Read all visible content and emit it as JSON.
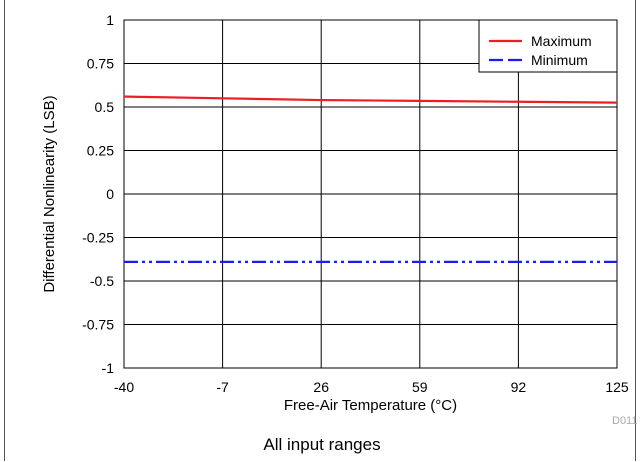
{
  "chart_data": {
    "type": "line",
    "xlabel": "Free-Air Temperature (°C)",
    "ylabel": "Differential Nonlinearity (LSB)",
    "x_ticks": [
      "-40",
      "-7",
      "26",
      "59",
      "92",
      "125"
    ],
    "y_ticks": [
      "1",
      "0.75",
      "0.5",
      "0.25",
      "0",
      "-0.25",
      "-0.5",
      "-0.75",
      "-1"
    ],
    "xlim": [
      -40,
      125
    ],
    "ylim": [
      -1,
      1
    ],
    "grid": true,
    "legend_position": "top-right",
    "series": [
      {
        "name": "Maximum",
        "color": "#ee1c25",
        "style": "solid",
        "x": [
          -40,
          -7,
          26,
          59,
          92,
          125
        ],
        "y": [
          0.56,
          0.55,
          0.54,
          0.535,
          0.53,
          0.525
        ]
      },
      {
        "name": "Minimum",
        "color": "#1a1aff",
        "style": "dash-dot-dot",
        "x": [
          -40,
          -7,
          26,
          59,
          92,
          125
        ],
        "y": [
          -0.39,
          -0.39,
          -0.39,
          -0.39,
          -0.39,
          -0.39
        ]
      }
    ]
  },
  "figure_id": "D011",
  "caption": "All input ranges"
}
